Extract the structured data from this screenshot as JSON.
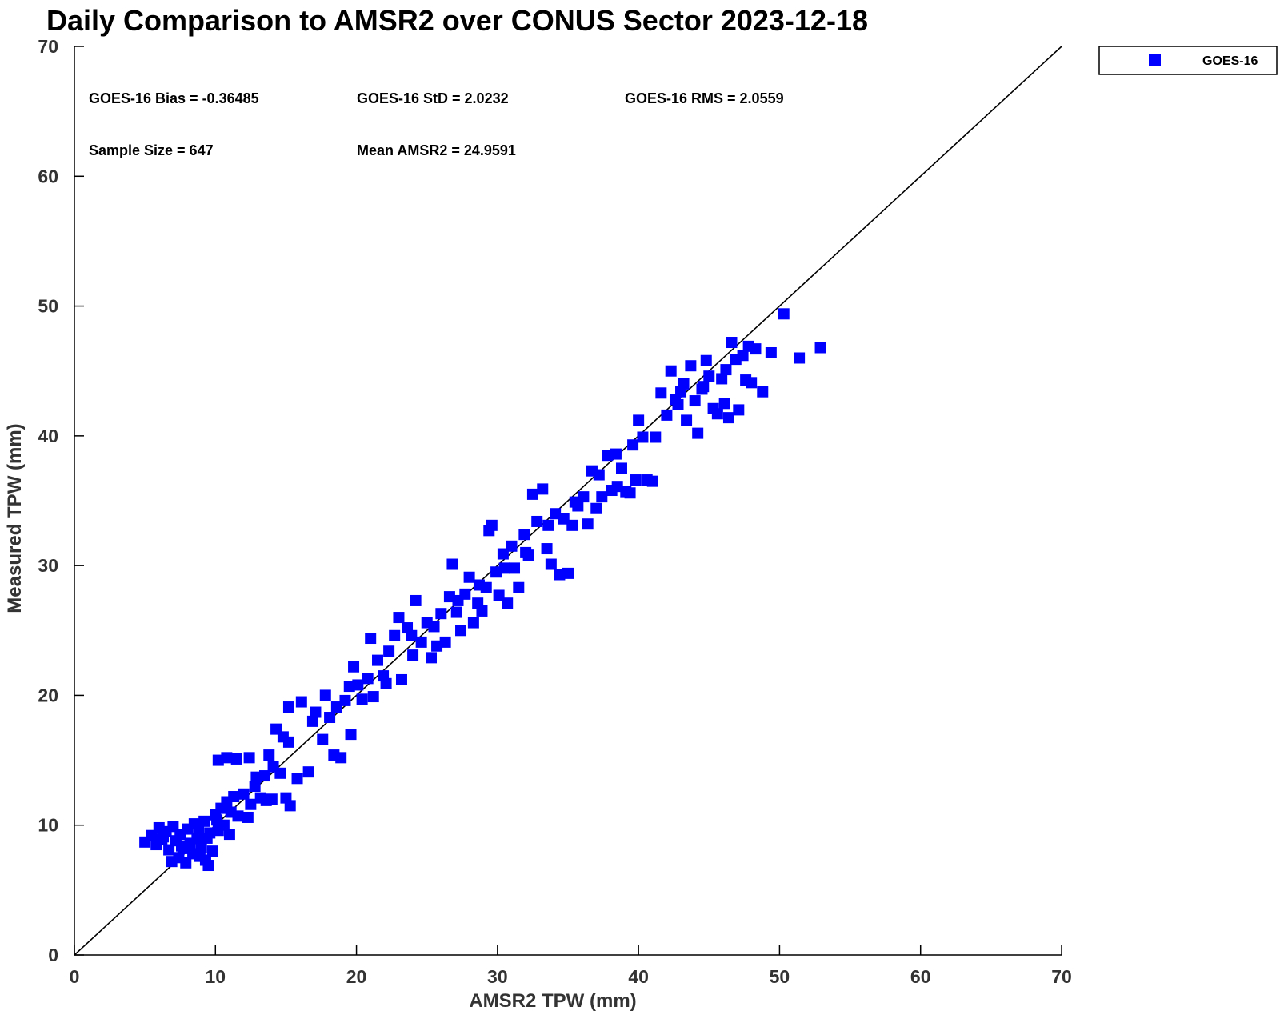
{
  "chart_data": {
    "type": "scatter",
    "title": "Daily Comparison to AMSR2 over CONUS Sector 2023-12-18",
    "xlabel": "AMSR2 TPW (mm)",
    "ylabel": "Measured TPW (mm)",
    "xlim": [
      0,
      70
    ],
    "ylim": [
      0,
      70
    ],
    "xticks": [
      0,
      10,
      20,
      30,
      40,
      50,
      60,
      70
    ],
    "yticks": [
      0,
      10,
      20,
      30,
      40,
      50,
      60,
      70
    ],
    "grid": false,
    "legend_position": "top-right, outside plot",
    "reference_line": {
      "from": [
        0,
        0
      ],
      "to": [
        70,
        70
      ],
      "color": "#000000"
    },
    "stats": {
      "bias": "GOES-16 Bias = -0.36485",
      "std": "GOES-16 StD = 2.0232",
      "rms": "GOES-16 RMS = 2.0559",
      "sample_size": "Sample Size = 647",
      "mean": "Mean AMSR2 = 24.9591"
    },
    "series": [
      {
        "name": "GOES-16",
        "color": "#0000ff",
        "marker": "square",
        "points": [
          [
            5.0,
            8.7
          ],
          [
            5.5,
            9.2
          ],
          [
            5.8,
            8.5
          ],
          [
            6.0,
            9.8
          ],
          [
            6.2,
            8.9
          ],
          [
            6.5,
            9.5
          ],
          [
            6.7,
            8.1
          ],
          [
            6.9,
            7.2
          ],
          [
            7.0,
            9.9
          ],
          [
            7.2,
            8.8
          ],
          [
            7.4,
            7.5
          ],
          [
            7.5,
            9.3
          ],
          [
            7.7,
            8.2
          ],
          [
            7.9,
            7.1
          ],
          [
            8.0,
            9.7
          ],
          [
            8.2,
            8.6
          ],
          [
            8.4,
            7.8
          ],
          [
            8.5,
            10.1
          ],
          [
            8.7,
            9.0
          ],
          [
            8.9,
            7.6
          ],
          [
            9.0,
            8.3
          ],
          [
            9.2,
            10.3
          ],
          [
            9.3,
            7.3
          ],
          [
            9.5,
            6.9
          ],
          [
            9.6,
            9.4
          ],
          [
            9.8,
            8.0
          ],
          [
            10.0,
            10.8
          ],
          [
            10.2,
            9.6
          ],
          [
            10.4,
            11.3
          ],
          [
            10.6,
            10.0
          ],
          [
            10.8,
            11.8
          ],
          [
            11.0,
            9.3
          ],
          [
            11.3,
            12.2
          ],
          [
            11.6,
            10.7
          ],
          [
            12.0,
            12.4
          ],
          [
            12.3,
            10.6
          ],
          [
            12.5,
            11.6
          ],
          [
            12.8,
            13.0
          ],
          [
            13.2,
            12.1
          ],
          [
            13.5,
            13.8
          ],
          [
            10.2,
            15.0
          ],
          [
            10.8,
            15.2
          ],
          [
            11.5,
            15.1
          ],
          [
            12.4,
            15.2
          ],
          [
            13.8,
            15.4
          ],
          [
            14.3,
            17.4
          ],
          [
            14.8,
            16.8
          ],
          [
            15.2,
            16.4
          ],
          [
            14.6,
            14.0
          ],
          [
            15.0,
            12.1
          ],
          [
            15.3,
            11.5
          ],
          [
            15.8,
            13.6
          ],
          [
            14.0,
            12.0
          ],
          [
            13.6,
            11.9
          ],
          [
            15.2,
            19.1
          ],
          [
            16.1,
            19.5
          ],
          [
            16.6,
            14.1
          ],
          [
            17.1,
            18.7
          ],
          [
            17.6,
            16.6
          ],
          [
            17.8,
            20.0
          ],
          [
            18.1,
            18.3
          ],
          [
            18.4,
            15.4
          ],
          [
            18.9,
            15.2
          ],
          [
            19.2,
            19.6
          ],
          [
            19.6,
            17.0
          ],
          [
            19.8,
            22.2
          ],
          [
            20.1,
            20.8
          ],
          [
            20.4,
            19.7
          ],
          [
            20.8,
            21.3
          ],
          [
            21.0,
            24.4
          ],
          [
            21.2,
            19.9
          ],
          [
            21.5,
            22.7
          ],
          [
            21.9,
            21.5
          ],
          [
            22.3,
            23.4
          ],
          [
            22.7,
            24.6
          ],
          [
            23.0,
            26.0
          ],
          [
            23.2,
            21.2
          ],
          [
            23.6,
            25.2
          ],
          [
            24.0,
            23.1
          ],
          [
            24.2,
            27.3
          ],
          [
            24.6,
            24.1
          ],
          [
            25.0,
            25.6
          ],
          [
            25.3,
            22.9
          ],
          [
            25.7,
            23.8
          ],
          [
            26.0,
            26.3
          ],
          [
            26.3,
            24.1
          ],
          [
            26.6,
            27.6
          ],
          [
            26.8,
            30.1
          ],
          [
            27.1,
            26.4
          ],
          [
            27.4,
            25.0
          ],
          [
            27.7,
            27.8
          ],
          [
            28.0,
            29.1
          ],
          [
            28.3,
            25.6
          ],
          [
            28.6,
            27.1
          ],
          [
            28.9,
            26.5
          ],
          [
            29.2,
            28.3
          ],
          [
            29.4,
            32.7
          ],
          [
            29.6,
            33.1
          ],
          [
            29.9,
            29.5
          ],
          [
            30.1,
            27.7
          ],
          [
            30.4,
            30.9
          ],
          [
            30.7,
            27.1
          ],
          [
            31.0,
            31.5
          ],
          [
            31.2,
            29.8
          ],
          [
            31.5,
            28.3
          ],
          [
            31.9,
            32.4
          ],
          [
            32.2,
            30.8
          ],
          [
            32.5,
            35.5
          ],
          [
            32.8,
            33.4
          ],
          [
            33.2,
            35.9
          ],
          [
            33.5,
            31.3
          ],
          [
            33.8,
            30.1
          ],
          [
            34.1,
            34.0
          ],
          [
            34.4,
            29.3
          ],
          [
            34.7,
            33.6
          ],
          [
            35.0,
            29.4
          ],
          [
            35.3,
            33.1
          ],
          [
            35.7,
            34.6
          ],
          [
            36.1,
            35.3
          ],
          [
            36.4,
            33.2
          ],
          [
            36.7,
            37.3
          ],
          [
            37.0,
            34.4
          ],
          [
            37.4,
            35.3
          ],
          [
            37.8,
            38.5
          ],
          [
            38.1,
            35.8
          ],
          [
            38.5,
            36.1
          ],
          [
            38.8,
            37.5
          ],
          [
            39.1,
            35.7
          ],
          [
            39.4,
            35.6
          ],
          [
            39.8,
            36.6
          ],
          [
            40.0,
            41.2
          ],
          [
            40.3,
            39.9
          ],
          [
            40.6,
            36.6
          ],
          [
            41.0,
            36.5
          ],
          [
            41.2,
            39.9
          ],
          [
            41.6,
            43.3
          ],
          [
            42.0,
            41.6
          ],
          [
            42.3,
            45.0
          ],
          [
            42.6,
            42.8
          ],
          [
            43.0,
            43.4
          ],
          [
            43.2,
            44.0
          ],
          [
            43.4,
            41.2
          ],
          [
            43.7,
            45.4
          ],
          [
            44.0,
            42.7
          ],
          [
            44.2,
            40.2
          ],
          [
            44.5,
            43.6
          ],
          [
            44.8,
            45.8
          ],
          [
            45.0,
            44.6
          ],
          [
            45.3,
            42.1
          ],
          [
            45.6,
            41.7
          ],
          [
            45.9,
            44.4
          ],
          [
            46.1,
            42.5
          ],
          [
            46.4,
            41.4
          ],
          [
            46.6,
            47.2
          ],
          [
            46.9,
            45.9
          ],
          [
            47.1,
            42.0
          ],
          [
            47.4,
            46.2
          ],
          [
            47.6,
            44.3
          ],
          [
            48.0,
            44.1
          ],
          [
            48.3,
            46.7
          ],
          [
            48.8,
            43.4
          ],
          [
            49.4,
            46.4
          ],
          [
            50.3,
            49.4
          ],
          [
            51.4,
            46.0
          ],
          [
            52.9,
            46.8
          ],
          [
            6.3,
            9.1
          ],
          [
            7.6,
            8.4
          ],
          [
            8.8,
            9.7
          ],
          [
            9.4,
            9.0
          ],
          [
            10.1,
            10.4
          ],
          [
            11.1,
            11.0
          ],
          [
            12.9,
            13.7
          ],
          [
            14.1,
            14.5
          ],
          [
            16.9,
            18.0
          ],
          [
            18.6,
            19.1
          ],
          [
            19.5,
            20.7
          ],
          [
            22.1,
            20.9
          ],
          [
            23.9,
            24.6
          ],
          [
            25.5,
            25.3
          ],
          [
            27.2,
            27.3
          ],
          [
            28.7,
            28.5
          ],
          [
            30.5,
            29.8
          ],
          [
            32.0,
            31.0
          ],
          [
            33.6,
            33.1
          ],
          [
            35.5,
            34.9
          ],
          [
            37.2,
            37.0
          ],
          [
            38.4,
            38.6
          ],
          [
            39.6,
            39.3
          ],
          [
            42.8,
            42.4
          ],
          [
            44.6,
            43.8
          ],
          [
            46.2,
            45.1
          ],
          [
            47.8,
            46.9
          ]
        ]
      }
    ]
  }
}
